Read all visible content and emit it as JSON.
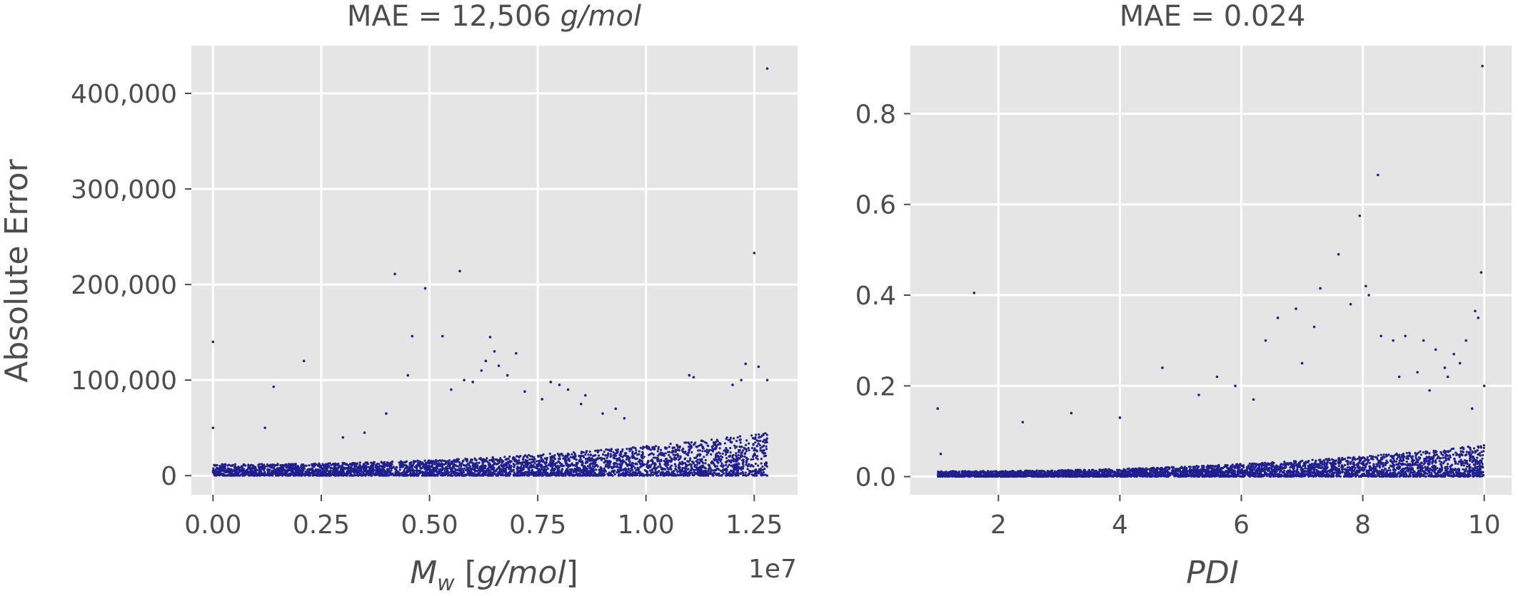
{
  "colors": {
    "panel_bg": "#e5e5e5",
    "grid": "#ffffff",
    "points": "#1f1f8f",
    "text": "#4d4d4d",
    "tick": "#4d4d4d"
  },
  "chart_data": [
    {
      "type": "scatter",
      "title": "MAE = 12,506 g/mol",
      "title_parts": {
        "prefix": "MAE = 12,506 ",
        "italic": "g/mol"
      },
      "xlabel": "M_w [g/mol]",
      "xlabel_parts": {
        "main": "M",
        "sub": "w",
        "rest": " [",
        "italic": "g/mol",
        "end": "]"
      },
      "ylabel": "Absolute Error",
      "x_offset_text": "1e7",
      "x_scale": 10000000,
      "xlim": [
        -0.05,
        1.35
      ],
      "ylim": [
        -20000,
        450000
      ],
      "xticks": [
        0.0,
        0.25,
        0.5,
        0.75,
        1.0,
        1.25
      ],
      "xtick_labels": [
        "0.00",
        "0.25",
        "0.50",
        "0.75",
        "1.00",
        "1.25"
      ],
      "yticks": [
        0,
        100000,
        200000,
        300000,
        400000
      ],
      "ytick_labels": [
        "0",
        "100,000",
        "200,000",
        "300,000",
        "400,000"
      ],
      "grid": true,
      "bulk": {
        "x_range": [
          0.0,
          1.28
        ],
        "y_base_start": 12000,
        "y_base_end": 45000,
        "count": 4200
      },
      "outliers": {
        "x": [
          0.0,
          0.0,
          0.12,
          0.14,
          0.21,
          0.42,
          0.46,
          0.49,
          0.53,
          0.57,
          0.58,
          0.63,
          0.64,
          0.65,
          0.66,
          0.7,
          0.78,
          0.8,
          0.82,
          0.86,
          0.93,
          1.1,
          1.11,
          1.23,
          1.25,
          1.26,
          1.28,
          1.28,
          0.4,
          0.45,
          0.6,
          0.62,
          0.68,
          0.72,
          0.76,
          0.9,
          0.95,
          1.2,
          1.22,
          0.3,
          0.35,
          0.55,
          0.85
        ],
        "y": [
          140000,
          50000,
          50000,
          93000,
          120000,
          211000,
          146000,
          196000,
          146000,
          214000,
          100000,
          120000,
          145000,
          130000,
          115000,
          128000,
          98000,
          95000,
          90000,
          84000,
          70000,
          105000,
          103000,
          117000,
          233000,
          114000,
          426000,
          100000,
          65000,
          105000,
          98000,
          110000,
          105000,
          88000,
          80000,
          65000,
          60000,
          95000,
          100000,
          40000,
          45000,
          90000,
          75000
        ]
      }
    },
    {
      "type": "scatter",
      "title": "MAE = 0.024",
      "xlabel": "PDI",
      "ylabel": "",
      "xlim": [
        0.55,
        10.45
      ],
      "ylim": [
        -0.04,
        0.95
      ],
      "xticks": [
        2,
        4,
        6,
        8,
        10
      ],
      "xtick_labels": [
        "2",
        "4",
        "6",
        "8",
        "10"
      ],
      "yticks": [
        0.0,
        0.2,
        0.4,
        0.6,
        0.8
      ],
      "ytick_labels": [
        "0.0",
        "0.2",
        "0.4",
        "0.6",
        "0.8"
      ],
      "grid": true,
      "bulk": {
        "x_range": [
          1.0,
          10.0
        ],
        "y_base_start": 0.012,
        "y_base_end": 0.07,
        "count": 4200
      },
      "outliers": {
        "x": [
          1.0,
          1.05,
          1.6,
          2.4,
          4.7,
          5.6,
          6.4,
          6.6,
          6.9,
          7.2,
          7.3,
          7.6,
          7.8,
          7.95,
          8.05,
          8.1,
          8.25,
          8.3,
          8.5,
          8.7,
          9.0,
          9.2,
          9.35,
          9.4,
          9.6,
          9.7,
          9.85,
          9.95,
          9.97,
          10.0,
          5.9,
          6.2,
          7.0,
          8.9,
          9.5,
          9.9,
          3.2,
          4.0,
          5.3,
          8.6,
          9.1,
          9.8
        ],
        "y": [
          0.15,
          0.05,
          0.405,
          0.12,
          0.24,
          0.22,
          0.3,
          0.35,
          0.37,
          0.33,
          0.415,
          0.49,
          0.38,
          0.575,
          0.42,
          0.4,
          0.665,
          0.31,
          0.3,
          0.31,
          0.3,
          0.28,
          0.24,
          0.22,
          0.25,
          0.3,
          0.365,
          0.45,
          0.905,
          0.2,
          0.2,
          0.17,
          0.25,
          0.23,
          0.27,
          0.35,
          0.14,
          0.13,
          0.18,
          0.22,
          0.19,
          0.15
        ]
      }
    }
  ]
}
